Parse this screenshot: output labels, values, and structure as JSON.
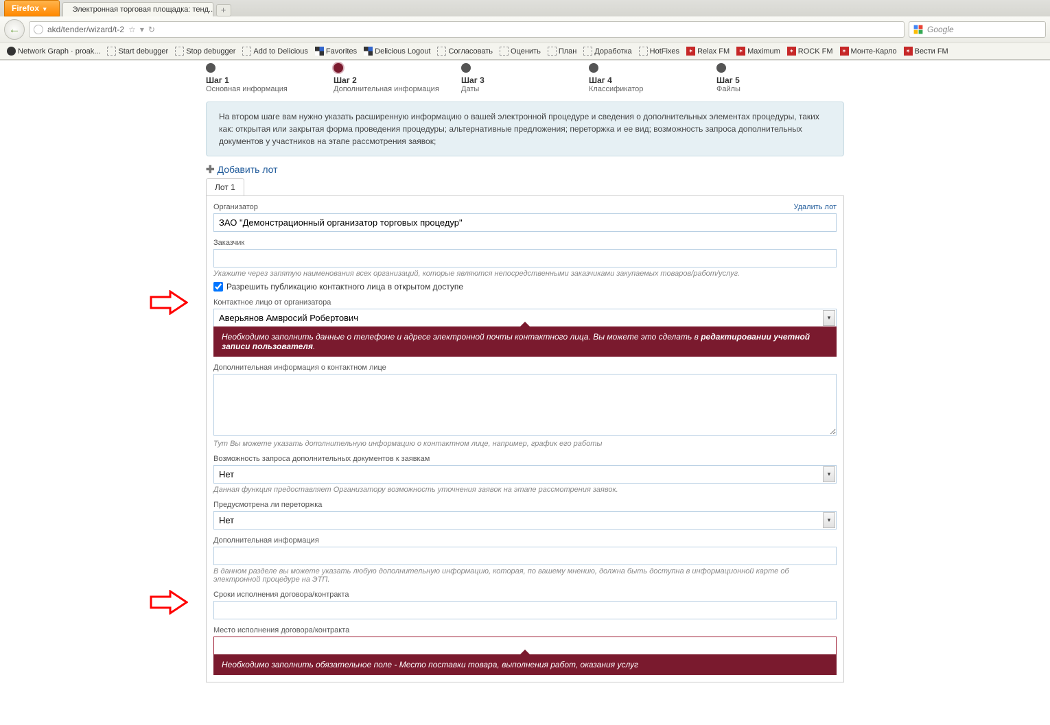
{
  "browser": {
    "app_name": "Firefox",
    "tab_title": "Электронная торговая площадка: тенд...",
    "url_display": "akd/tender/wizard/t-2",
    "search_placeholder": "Google",
    "bookmarks": [
      {
        "icon": "github",
        "label": "Network Graph · proak..."
      },
      {
        "icon": "dash",
        "label": "Start debugger"
      },
      {
        "icon": "dash",
        "label": "Stop debugger"
      },
      {
        "icon": "dash",
        "label": "Add to Delicious"
      },
      {
        "icon": "del",
        "label": "Favorites"
      },
      {
        "icon": "del",
        "label": "Delicious Logout"
      },
      {
        "icon": "dash",
        "label": "Согласовать"
      },
      {
        "icon": "dash",
        "label": "Оценить"
      },
      {
        "icon": "dash",
        "label": "План"
      },
      {
        "icon": "dash",
        "label": "Доработка"
      },
      {
        "icon": "dash",
        "label": "HotFixes"
      },
      {
        "icon": "red",
        "label": "Relax FM"
      },
      {
        "icon": "red",
        "label": "Maximum"
      },
      {
        "icon": "red",
        "label": "ROCK FM"
      },
      {
        "icon": "red",
        "label": "Монте-Карло"
      },
      {
        "icon": "red",
        "label": "Вести FM"
      }
    ]
  },
  "wizard_steps": [
    {
      "title": "Шаг 1",
      "sub": "Основная информация"
    },
    {
      "title": "Шаг 2",
      "sub": "Дополнительная информация"
    },
    {
      "title": "Шаг 3",
      "sub": "Даты"
    },
    {
      "title": "Шаг 4",
      "sub": "Классификатор"
    },
    {
      "title": "Шаг 5",
      "sub": "Файлы"
    }
  ],
  "active_step_index": 1,
  "infobox_text": "На втором шаге вам нужно указать расширенную информацию о вашей электронной процедуре и сведения о дополнительных элементах процедуры, таких как: открытая или закрытая форма проведения процедуры; альтернативные предложения; переторжка и ее вид; возможность запроса дополнительных документов у участников на этапе рассмотрения заявок;",
  "add_lot_label": "Добавить лот",
  "lot_tab_label": "Лот 1",
  "delete_lot_label": "Удалить лот",
  "fields": {
    "organizer": {
      "label": "Организатор",
      "value": "ЗАО \"Демонстрационный организатор торговых процедур\""
    },
    "customer": {
      "label": "Заказчик",
      "value": "",
      "hint": "Укажите через запятую наименования всех организаций, которые являются непосредственными заказчиками закупаемых товаров/работ/услуг."
    },
    "allow_publish": {
      "label": "Разрешить публикацию контактного лица в открытом доступе",
      "checked": true
    },
    "contact_person": {
      "label": "Контактное лицо от организатора",
      "value": "Аверьянов Амвросий Робертович"
    },
    "contact_error": {
      "pre": "Необходимо заполнить данные о телефоне и адресе электронной почты контактного лица. Вы можете это сделать в ",
      "emph": "редактировании учетной записи пользователя",
      "post": "."
    },
    "contact_extra": {
      "label": "Дополнительная информация о контактном лице",
      "value": "",
      "hint": "Тут Вы можете указать дополнительную информацию о контактном лице, например, график его работы"
    },
    "extra_docs": {
      "label": "Возможность запроса дополнительных документов к заявкам",
      "value": "Нет",
      "hint": "Данная функция предоставляет Организатору возможность уточнения заявок на этапе рассмотрения заявок."
    },
    "rebidding": {
      "label": "Предусмотрена ли переторжка",
      "value": "Нет"
    },
    "extra_info": {
      "label": "Дополнительная информация",
      "value": "",
      "hint": "В данном разделе вы можете указать любую дополнительную информацию, которая, по вашему мнению, должна быть доступна в информационной карте об электронной процедуре на ЭТП."
    },
    "contract_term": {
      "label": "Сроки исполнения договора/контракта",
      "value": ""
    },
    "contract_place": {
      "label": "Место исполнения договора/контракта",
      "value": ""
    },
    "place_error": {
      "text": "Необходимо заполнить обязательное поле - Место поставки товара, выполнения работ, оказания услуг"
    }
  },
  "colors": {
    "error_bg": "#7a1a2e",
    "info_bg": "#e6f0f4",
    "link": "#1f5a9a",
    "arrow": "#ff0000"
  }
}
